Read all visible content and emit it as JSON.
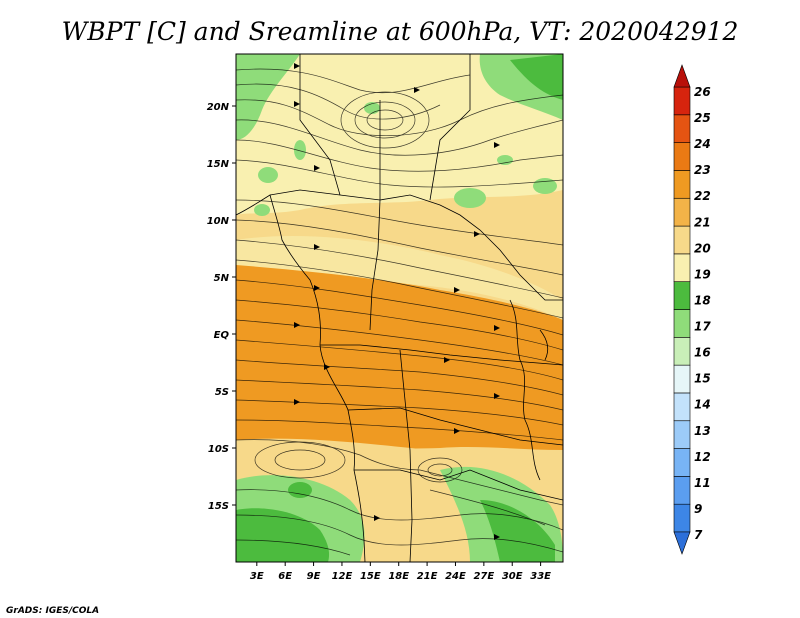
{
  "title": "WBPT [C] and Sreamline at 600hPa, VT: 2020042912",
  "credit": "GrADS: IGES/COLA",
  "map": {
    "lon_ticks": [
      "3E",
      "6E",
      "9E",
      "12E",
      "15E",
      "18E",
      "21E",
      "24E",
      "27E",
      "30E",
      "33E"
    ],
    "lat_ticks": [
      "20N",
      "15N",
      "10N",
      "5N",
      "EQ",
      "5S",
      "10S",
      "15S"
    ],
    "lon_values": [
      3,
      6,
      9,
      12,
      15,
      18,
      21,
      24,
      27,
      30,
      33
    ],
    "lat_values": [
      20,
      15,
      10,
      5,
      0,
      -5,
      -10,
      -15
    ]
  },
  "colorbar": {
    "labels": [
      "7",
      "9",
      "11",
      "12",
      "13",
      "14",
      "15",
      "16",
      "17",
      "18",
      "19",
      "20",
      "21",
      "22",
      "23",
      "24",
      "25",
      "26"
    ],
    "colors": [
      "#2c6fd9",
      "#3d86e6",
      "#5b9ef0",
      "#78b4f5",
      "#9ccbf8",
      "#c3e2fb",
      "#e6f6f8",
      "#c9efb8",
      "#8fdc7a",
      "#4cbb3e",
      "#f9f0b0",
      "#f7d98a",
      "#f3b348",
      "#ef9a22",
      "#ea7a14",
      "#e55412",
      "#d6240e",
      "#b8100a"
    ]
  }
}
